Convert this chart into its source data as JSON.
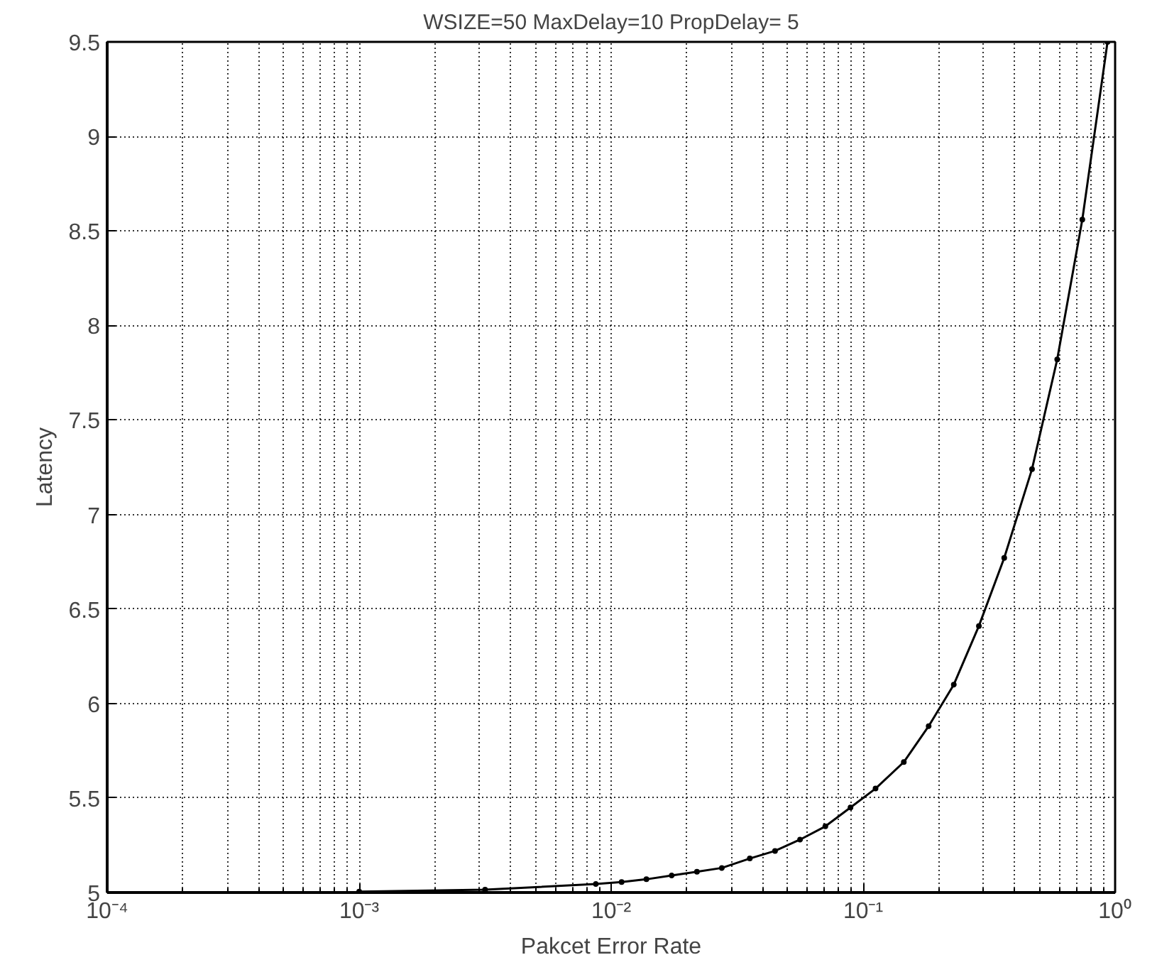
{
  "chart_data": {
    "type": "line",
    "title": "WSIZE=50 MaxDelay=10 PropDelay= 5",
    "xlabel": "Pakcet Error Rate",
    "ylabel": "Latency",
    "x": [
      0.001,
      0.00316,
      0.0087,
      0.011,
      0.0138,
      0.0174,
      0.0219,
      0.0275,
      0.0355,
      0.0447,
      0.0562,
      0.0708,
      0.0891,
      0.112,
      0.145,
      0.182,
      0.229,
      0.288,
      0.363,
      0.468,
      0.589,
      0.741,
      0.933
    ],
    "series": [
      {
        "color": "#000000",
        "values": [
          5.005,
          5.015,
          5.045,
          5.055,
          5.07,
          5.09,
          5.11,
          5.13,
          5.18,
          5.22,
          5.28,
          5.35,
          5.45,
          5.55,
          5.69,
          5.88,
          6.1,
          6.41,
          6.77,
          7.24,
          7.82,
          8.56,
          9.5
        ]
      }
    ],
    "xlim": [
      0.0001,
      1
    ],
    "ylim": [
      5,
      9.5
    ],
    "xticks": [
      {
        "value": 0.0001,
        "label": "10⁻⁴"
      },
      {
        "value": 0.001,
        "label": "10⁻³"
      },
      {
        "value": 0.01,
        "label": "10⁻²"
      },
      {
        "value": 0.1,
        "label": "10⁻¹"
      },
      {
        "value": 1,
        "label": "10⁰"
      }
    ],
    "yticks": [
      5,
      5.5,
      6,
      6.5,
      7,
      7.5,
      8,
      8.5,
      9,
      9.5
    ],
    "log": "x",
    "grid": true,
    "marker": "circle",
    "line_style": "solid"
  }
}
